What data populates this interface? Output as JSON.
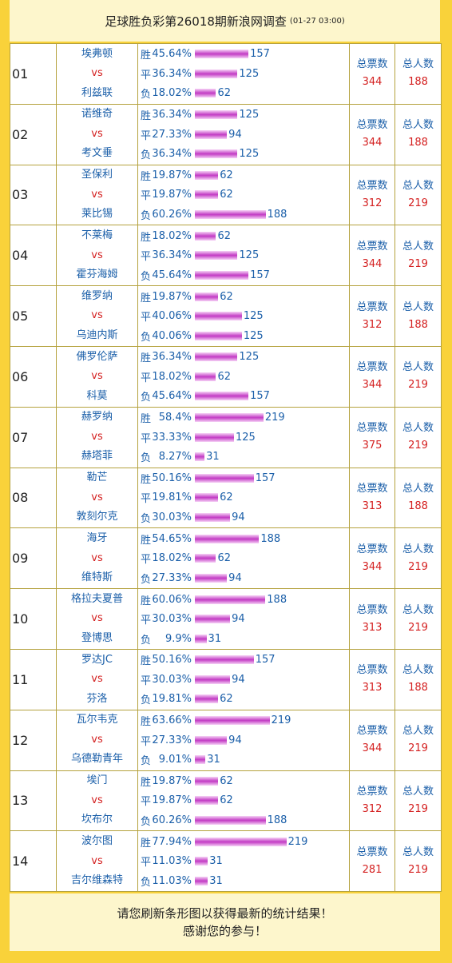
{
  "header": {
    "title": "足球胜负彩第26018期新浪网调查",
    "time": "(01-27 03:00)"
  },
  "labels": {
    "outcomes": [
      "胜",
      "平",
      "负"
    ],
    "vs": "vs",
    "total_votes": "总票数",
    "total_people": "总人数"
  },
  "matches": [
    {
      "no": "01",
      "home": "埃弗顿",
      "away": "利兹联",
      "outcomes": [
        {
          "pct": {
            "value": 45.64,
            "label": "45.64%"
          },
          "count": 157
        },
        {
          "pct": {
            "value": 36.34,
            "label": "36.34%"
          },
          "count": 125
        },
        {
          "pct": {
            "value": 18.02,
            "label": "18.02%"
          },
          "count": 62
        }
      ],
      "total_votes": 344,
      "total_people": 188
    },
    {
      "no": "02",
      "home": "诺维奇",
      "away": "考文垂",
      "outcomes": [
        {
          "pct": {
            "value": 36.34,
            "label": "36.34%"
          },
          "count": 125
        },
        {
          "pct": {
            "value": 27.33,
            "label": "27.33%"
          },
          "count": 94
        },
        {
          "pct": {
            "value": 36.34,
            "label": "36.34%"
          },
          "count": 125
        }
      ],
      "total_votes": 344,
      "total_people": 188
    },
    {
      "no": "03",
      "home": "圣保利",
      "away": "莱比锡",
      "outcomes": [
        {
          "pct": {
            "value": 19.87,
            "label": "19.87%"
          },
          "count": 62
        },
        {
          "pct": {
            "value": 19.87,
            "label": "19.87%"
          },
          "count": 62
        },
        {
          "pct": {
            "value": 60.26,
            "label": "60.26%"
          },
          "count": 188
        }
      ],
      "total_votes": 312,
      "total_people": 219
    },
    {
      "no": "04",
      "home": "不莱梅",
      "away": "霍芬海姆",
      "outcomes": [
        {
          "pct": {
            "value": 18.02,
            "label": "18.02%"
          },
          "count": 62
        },
        {
          "pct": {
            "value": 36.34,
            "label": "36.34%"
          },
          "count": 125
        },
        {
          "pct": {
            "value": 45.64,
            "label": "45.64%"
          },
          "count": 157
        }
      ],
      "total_votes": 344,
      "total_people": 219
    },
    {
      "no": "05",
      "home": "维罗纳",
      "away": "乌迪内斯",
      "outcomes": [
        {
          "pct": {
            "value": 19.87,
            "label": "19.87%"
          },
          "count": 62
        },
        {
          "pct": {
            "value": 40.06,
            "label": "40.06%"
          },
          "count": 125
        },
        {
          "pct": {
            "value": 40.06,
            "label": "40.06%"
          },
          "count": 125
        }
      ],
      "total_votes": 312,
      "total_people": 188
    },
    {
      "no": "06",
      "home": "佛罗伦萨",
      "away": "科莫",
      "outcomes": [
        {
          "pct": {
            "value": 36.34,
            "label": "36.34%"
          },
          "count": 125
        },
        {
          "pct": {
            "value": 18.02,
            "label": "18.02%"
          },
          "count": 62
        },
        {
          "pct": {
            "value": 45.64,
            "label": "45.64%"
          },
          "count": 157
        }
      ],
      "total_votes": 344,
      "total_people": 219
    },
    {
      "no": "07",
      "home": "赫罗纳",
      "away": "赫塔菲",
      "outcomes": [
        {
          "pct": {
            "value": 58.4,
            "label": "58.4%"
          },
          "count": 219
        },
        {
          "pct": {
            "value": 33.33,
            "label": "33.33%"
          },
          "count": 125
        },
        {
          "pct": {
            "value": 8.27,
            "label": "8.27%"
          },
          "count": 31
        }
      ],
      "total_votes": 375,
      "total_people": 219
    },
    {
      "no": "08",
      "home": "勒芒",
      "away": "敦刻尔克",
      "outcomes": [
        {
          "pct": {
            "value": 50.16,
            "label": "50.16%"
          },
          "count": 157
        },
        {
          "pct": {
            "value": 19.81,
            "label": "19.81%"
          },
          "count": 62
        },
        {
          "pct": {
            "value": 30.03,
            "label": "30.03%"
          },
          "count": 94
        }
      ],
      "total_votes": 313,
      "total_people": 188
    },
    {
      "no": "09",
      "home": "海牙",
      "away": "维特斯",
      "outcomes": [
        {
          "pct": {
            "value": 54.65,
            "label": "54.65%"
          },
          "count": 188
        },
        {
          "pct": {
            "value": 18.02,
            "label": "18.02%"
          },
          "count": 62
        },
        {
          "pct": {
            "value": 27.33,
            "label": "27.33%"
          },
          "count": 94
        }
      ],
      "total_votes": 344,
      "total_people": 219
    },
    {
      "no": "10",
      "home": "格拉夫夏普",
      "away": "登博思",
      "outcomes": [
        {
          "pct": {
            "value": 60.06,
            "label": "60.06%"
          },
          "count": 188
        },
        {
          "pct": {
            "value": 30.03,
            "label": "30.03%"
          },
          "count": 94
        },
        {
          "pct": {
            "value": 9.9,
            "label": "9.9%"
          },
          "count": 31
        }
      ],
      "total_votes": 313,
      "total_people": 219
    },
    {
      "no": "11",
      "home": "罗达JC",
      "away": "芬洛",
      "outcomes": [
        {
          "pct": {
            "value": 50.16,
            "label": "50.16%"
          },
          "count": 157
        },
        {
          "pct": {
            "value": 30.03,
            "label": "30.03%"
          },
          "count": 94
        },
        {
          "pct": {
            "value": 19.81,
            "label": "19.81%"
          },
          "count": 62
        }
      ],
      "total_votes": 313,
      "total_people": 188
    },
    {
      "no": "12",
      "home": "瓦尔韦克",
      "away": "乌德勒青年",
      "outcomes": [
        {
          "pct": {
            "value": 63.66,
            "label": "63.66%"
          },
          "count": 219
        },
        {
          "pct": {
            "value": 27.33,
            "label": "27.33%"
          },
          "count": 94
        },
        {
          "pct": {
            "value": 9.01,
            "label": "9.01%"
          },
          "count": 31
        }
      ],
      "total_votes": 344,
      "total_people": 219
    },
    {
      "no": "13",
      "home": "埃门",
      "away": "坎布尔",
      "outcomes": [
        {
          "pct": {
            "value": 19.87,
            "label": "19.87%"
          },
          "count": 62
        },
        {
          "pct": {
            "value": 19.87,
            "label": "19.87%"
          },
          "count": 62
        },
        {
          "pct": {
            "value": 60.26,
            "label": "60.26%"
          },
          "count": 188
        }
      ],
      "total_votes": 312,
      "total_people": 219
    },
    {
      "no": "14",
      "home": "波尔图",
      "away": "吉尔维森特",
      "outcomes": [
        {
          "pct": {
            "value": 77.94,
            "label": "77.94%"
          },
          "count": 219
        },
        {
          "pct": {
            "value": 11.03,
            "label": "11.03%"
          },
          "count": 31
        },
        {
          "pct": {
            "value": 11.03,
            "label": "11.03%"
          },
          "count": 31
        }
      ],
      "total_votes": 281,
      "total_people": 219
    }
  ],
  "footer": {
    "line1": "请您刷新条形图以获得最新的统计结果！",
    "line2": "感谢您的参与！"
  }
}
